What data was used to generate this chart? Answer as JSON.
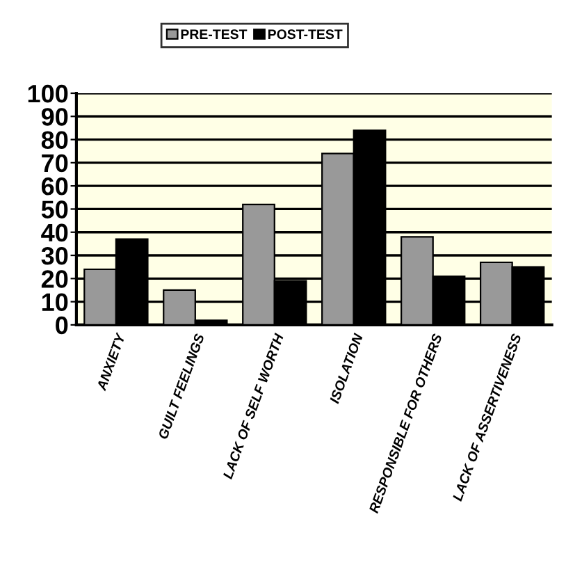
{
  "chart_data": {
    "type": "bar",
    "categories": [
      "ANXIETY",
      "GUILT FEELINGS",
      "LACK OF SELF WORTH",
      "ISOLATION",
      "RESPONSIBLE FOR OTHERS",
      "LACK OF ASSERTIVENESS"
    ],
    "series": [
      {
        "name": "PRE-TEST",
        "color": "#999999",
        "values": [
          24,
          15,
          52,
          74,
          38,
          27
        ]
      },
      {
        "name": "POST-TEST",
        "color": "#000000",
        "values": [
          37,
          2,
          19,
          84,
          21,
          25
        ]
      }
    ],
    "ylim": [
      0,
      100
    ],
    "yticks": [
      0,
      10,
      20,
      30,
      40,
      50,
      60,
      70,
      80,
      90,
      100
    ],
    "grid": "y",
    "legend": "top"
  }
}
